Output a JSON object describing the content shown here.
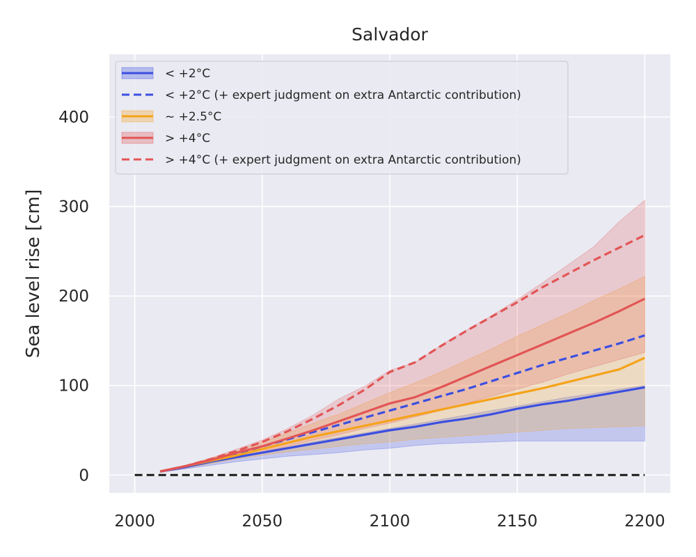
{
  "chart_data": {
    "type": "line",
    "title": "Salvador",
    "xlabel": "",
    "ylabel": "Sea level rise [cm]",
    "xlim": [
      1990,
      2210
    ],
    "ylim": [
      -20,
      470
    ],
    "xticks": [
      2000,
      2050,
      2100,
      2150,
      2200
    ],
    "yticks": [
      0,
      100,
      200,
      300,
      400
    ],
    "grid": true,
    "legend_position": "top-left",
    "baseline": {
      "x": [
        2000,
        2200
      ],
      "y": [
        0,
        0
      ],
      "color": "#1a1a1a",
      "style": "dashed"
    },
    "bands": [
      {
        "name": "< +2°C",
        "color": "#3b4fe0",
        "x": [
          2010,
          2020,
          2030,
          2040,
          2050,
          2060,
          2070,
          2080,
          2090,
          2100,
          2110,
          2120,
          2130,
          2140,
          2150,
          2160,
          2170,
          2180,
          2190,
          2200
        ],
        "lower": [
          3,
          7,
          11,
          15,
          18,
          21,
          23,
          25,
          28,
          30,
          33,
          35,
          36,
          37,
          38,
          38,
          38,
          38,
          38,
          38
        ],
        "upper": [
          4,
          9,
          15,
          20,
          26,
          31,
          37,
          42,
          47,
          52,
          57,
          62,
          67,
          72,
          77,
          82,
          87,
          91,
          96,
          100
        ]
      },
      {
        "name": "~ +2.5°C",
        "color": "#f5a31a",
        "x": [
          2010,
          2020,
          2030,
          2040,
          2050,
          2060,
          2070,
          2080,
          2090,
          2100,
          2110,
          2120,
          2130,
          2140,
          2150,
          2160,
          2170,
          2180,
          2190,
          2200
        ],
        "lower": [
          3,
          8,
          13,
          18,
          22,
          26,
          29,
          32,
          35,
          37,
          40,
          42,
          44,
          46,
          48,
          50,
          52,
          53,
          54,
          55
        ],
        "upper": [
          5,
          11,
          19,
          27,
          37,
          47,
          58,
          68,
          80,
          92,
          103,
          115,
          128,
          141,
          155,
          168,
          181,
          195,
          208,
          222
        ]
      },
      {
        "name": "> +4°C",
        "color": "#e25555",
        "x": [
          2010,
          2020,
          2030,
          2040,
          2050,
          2060,
          2070,
          2080,
          2090,
          2100,
          2110,
          2120,
          2130,
          2140,
          2150,
          2160,
          2170,
          2180,
          2190,
          2200
        ],
        "lower": [
          3,
          8,
          14,
          20,
          26,
          32,
          39,
          45,
          52,
          58,
          65,
          72,
          80,
          88,
          96,
          104,
          113,
          121,
          129,
          137
        ],
        "upper": [
          5,
          11,
          19,
          29,
          39,
          52,
          67,
          85,
          99,
          117,
          126,
          145,
          162,
          178,
          196,
          215,
          235,
          255,
          283,
          307
        ]
      }
    ],
    "series": [
      {
        "name": "< +2°C",
        "color": "#3b4fe0",
        "style": "solid",
        "x": [
          2010,
          2020,
          2030,
          2040,
          2050,
          2060,
          2070,
          2080,
          2090,
          2100,
          2110,
          2120,
          2130,
          2140,
          2150,
          2160,
          2170,
          2180,
          2190,
          2200
        ],
        "y": [
          4,
          9,
          15,
          20,
          25,
          30,
          35,
          40,
          45,
          50,
          54,
          59,
          63,
          68,
          74,
          79,
          83,
          88,
          93,
          98
        ]
      },
      {
        "name": "< +2°C (+ expert judgment on extra Antarctic contribution)",
        "color": "#3b4fe0",
        "style": "dashed",
        "x": [
          2010,
          2020,
          2030,
          2040,
          2050,
          2060,
          2070,
          2080,
          2090,
          2100,
          2110,
          2120,
          2130,
          2140,
          2150,
          2160,
          2170,
          2180,
          2190,
          2200
        ],
        "y": [
          4,
          10,
          17,
          24,
          32,
          40,
          48,
          56,
          64,
          72,
          80,
          88,
          96,
          105,
          114,
          123,
          131,
          139,
          147,
          156
        ]
      },
      {
        "name": "~ +2.5°C",
        "color": "#f5a31a",
        "style": "solid",
        "x": [
          2010,
          2020,
          2030,
          2040,
          2050,
          2060,
          2070,
          2080,
          2090,
          2100,
          2110,
          2120,
          2130,
          2140,
          2150,
          2160,
          2170,
          2180,
          2190,
          2200
        ],
        "y": [
          4,
          10,
          16,
          22,
          29,
          36,
          43,
          49,
          55,
          61,
          67,
          73,
          79,
          85,
          91,
          97,
          104,
          111,
          118,
          131
        ]
      },
      {
        "name": "> +4°C",
        "color": "#e25555",
        "style": "solid",
        "x": [
          2010,
          2020,
          2030,
          2040,
          2050,
          2060,
          2070,
          2080,
          2090,
          2100,
          2110,
          2120,
          2130,
          2140,
          2150,
          2160,
          2170,
          2180,
          2190,
          2200
        ],
        "y": [
          4,
          10,
          17,
          25,
          32,
          41,
          50,
          60,
          70,
          80,
          87,
          98,
          110,
          122,
          134,
          146,
          158,
          170,
          183,
          197
        ]
      },
      {
        "name": "> +4°C (+ expert judgment on extra Antarctic contribution)",
        "color": "#e25555",
        "style": "dashed",
        "x": [
          2010,
          2020,
          2030,
          2040,
          2050,
          2060,
          2070,
          2080,
          2090,
          2100,
          2110,
          2120,
          2130,
          2140,
          2150,
          2160,
          2170,
          2180,
          2190,
          2200
        ],
        "y": [
          4,
          10,
          18,
          27,
          37,
          49,
          63,
          78,
          95,
          115,
          126,
          144,
          161,
          177,
          193,
          210,
          225,
          240,
          254,
          268
        ]
      }
    ],
    "legend": [
      {
        "label": "< +2°C",
        "color": "#3b4fe0",
        "style": "solid",
        "patch": true
      },
      {
        "label": "< +2°C (+ expert judgment on extra Antarctic contribution)",
        "color": "#3b4fe0",
        "style": "dashed",
        "patch": false
      },
      {
        "label": "~ +2.5°C",
        "color": "#f5a31a",
        "style": "solid",
        "patch": true
      },
      {
        "label": "> +4°C",
        "color": "#e25555",
        "style": "solid",
        "patch": true
      },
      {
        "label": "> +4°C (+ expert judgment on extra Antarctic contribution)",
        "color": "#e25555",
        "style": "dashed",
        "patch": false
      }
    ],
    "colors": {
      "background": "#eaeaf2",
      "grid": "#ffffff"
    }
  }
}
